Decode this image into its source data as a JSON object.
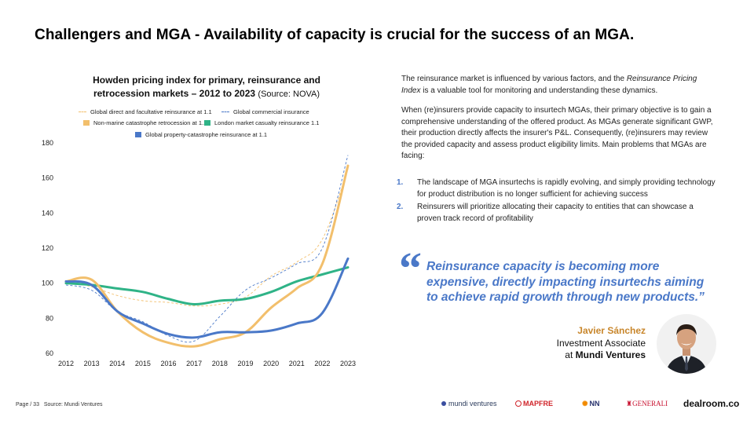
{
  "page": {
    "title": "Challengers and MGA - Availability of capacity is crucial for the success of an MGA."
  },
  "chart_data": {
    "type": "line",
    "title": "Howden pricing index for primary, reinsurance and retrocession markets – 2012 to 2023",
    "source_note": "(Source: NOVA)",
    "categories": [
      "2012",
      "2013",
      "2014",
      "2015",
      "2016",
      "2017",
      "2018",
      "2019",
      "2020",
      "2021",
      "2022",
      "2023"
    ],
    "yticks": [
      "180",
      "160",
      "140",
      "120",
      "100",
      "80",
      "60"
    ],
    "ylim": [
      60,
      180
    ],
    "series": [
      {
        "name": "Global direct and facultative reinsurance at 1.1",
        "style": "dashed",
        "color": "#f2bf6c",
        "values": [
          101,
          98,
          93,
          90,
          89,
          87,
          88,
          92,
          104,
          112,
          125,
          165
        ]
      },
      {
        "name": "Global commercial insurance",
        "style": "dashed",
        "color": "#4a78c8",
        "values": [
          99,
          96,
          84,
          78,
          70,
          67,
          81,
          96,
          103,
          111,
          120,
          173
        ]
      },
      {
        "name": "Non-marine catastrophe retrocession at 1.1",
        "style": "solid",
        "color": "#f2bf6c",
        "values": [
          101,
          102,
          84,
          72,
          66,
          64,
          68,
          72,
          86,
          97,
          111,
          167
        ]
      },
      {
        "name": "London market casualty reinsurance 1.1",
        "style": "solid",
        "color": "#2fb387",
        "values": [
          100,
          99,
          97,
          95,
          91,
          88,
          90,
          91,
          95,
          101,
          105,
          109
        ]
      },
      {
        "name": "Global property-catastrophe reinsurance at 1.1",
        "style": "solid",
        "color": "#4a78c8",
        "values": [
          101,
          99,
          84,
          77,
          71,
          69,
          72,
          72,
          73,
          77,
          83,
          114
        ]
      }
    ]
  },
  "right": {
    "para1_pre": "The reinsurance market is influenced by various factors, and the ",
    "para1_em": "Reinsurance Pricing Index",
    "para1_post": " is a valuable tool for monitoring and understanding these dynamics.",
    "para2": "When (re)insurers provide capacity to insurtech MGAs, their primary objective is to gain a comprehensive understanding of the offered product. As MGAs generate significant GWP, their production directly affects the insurer's P&L. Consequently, (re)insurers may review the provided capacity and assess product eligibility limits. Main problems that MGAs are facing:",
    "list": [
      {
        "num": "1.",
        "text": "The landscape of MGA insurtechs is rapidly evolving, and simply providing technology for product distribution is no longer sufficient for achieving success"
      },
      {
        "num": "2.",
        "text": "Reinsurers will prioritize allocating their capacity to entities that can showcase a proven track record of profitability"
      }
    ]
  },
  "quote": {
    "mark": "“",
    "text": "Reinsurance capacity is becoming more expensive, directly impacting insurtechs aiming to achieve rapid growth through new products.”",
    "name": "Javier Sánchez",
    "role": "Investment Associate",
    "at": "at",
    "org": "Mundi Ventures"
  },
  "footer": {
    "page": "Page / 33",
    "source_label": "Source:",
    "source": "Mundi Ventures"
  },
  "logos": {
    "mundi": "mundi ventures",
    "mapfre": "MAPFRE",
    "nn": "NN",
    "generali": "GENERALI",
    "dealroom": "dealroom.co"
  }
}
